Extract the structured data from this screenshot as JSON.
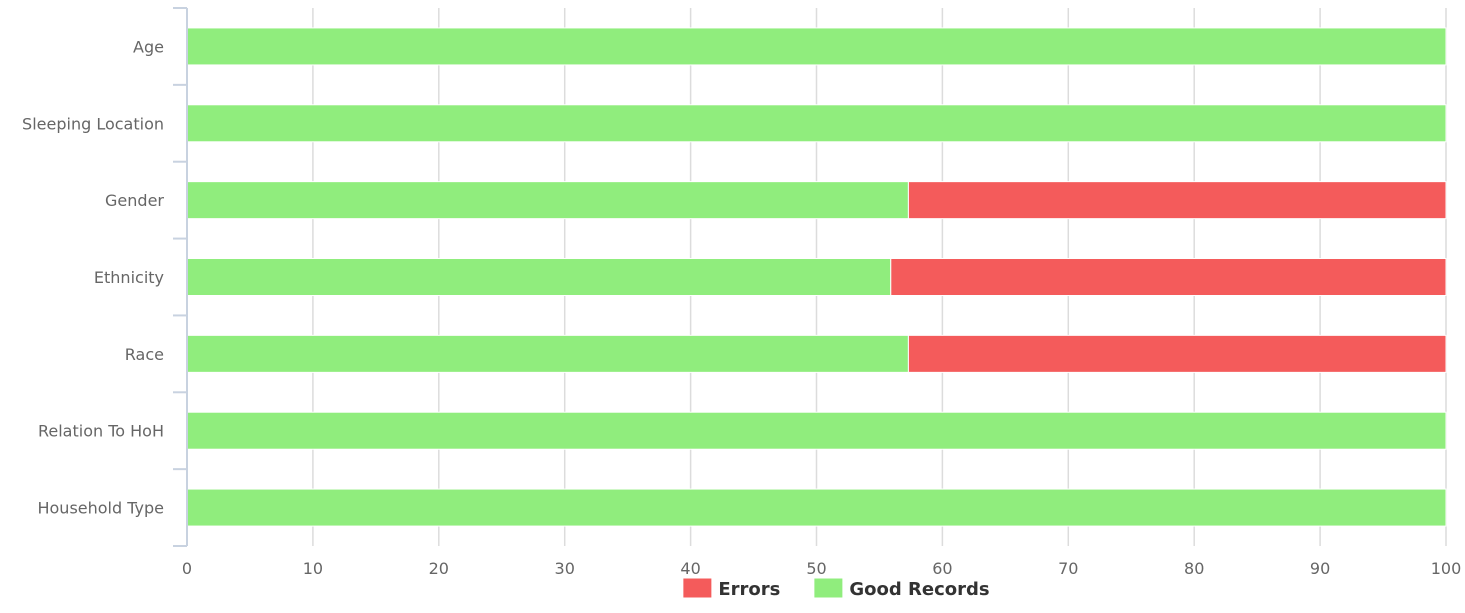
{
  "chart_data": {
    "type": "bar",
    "orientation": "horizontal",
    "stacked": true,
    "categories": [
      "Age",
      "Sleeping Location",
      "Gender",
      "Ethnicity",
      "Race",
      "Relation To HoH",
      "Household Type"
    ],
    "series": [
      {
        "name": "Good Records",
        "color": "#90ed7d",
        "values": [
          100,
          100,
          57.3,
          55.9,
          57.3,
          100,
          100
        ]
      },
      {
        "name": "Errors",
        "color": "#f45b5b",
        "values": [
          0,
          0,
          42.7,
          44.1,
          42.7,
          0,
          0
        ]
      }
    ],
    "xlim": [
      0,
      100
    ],
    "xticks": [
      0,
      10,
      20,
      30,
      40,
      50,
      60,
      70,
      80,
      90,
      100
    ],
    "grid": true,
    "legend": {
      "placement": "bottom-center",
      "items": [
        {
          "name": "Errors",
          "color": "#f45b5b"
        },
        {
          "name": "Good Records",
          "color": "#90ed7d"
        }
      ]
    }
  }
}
